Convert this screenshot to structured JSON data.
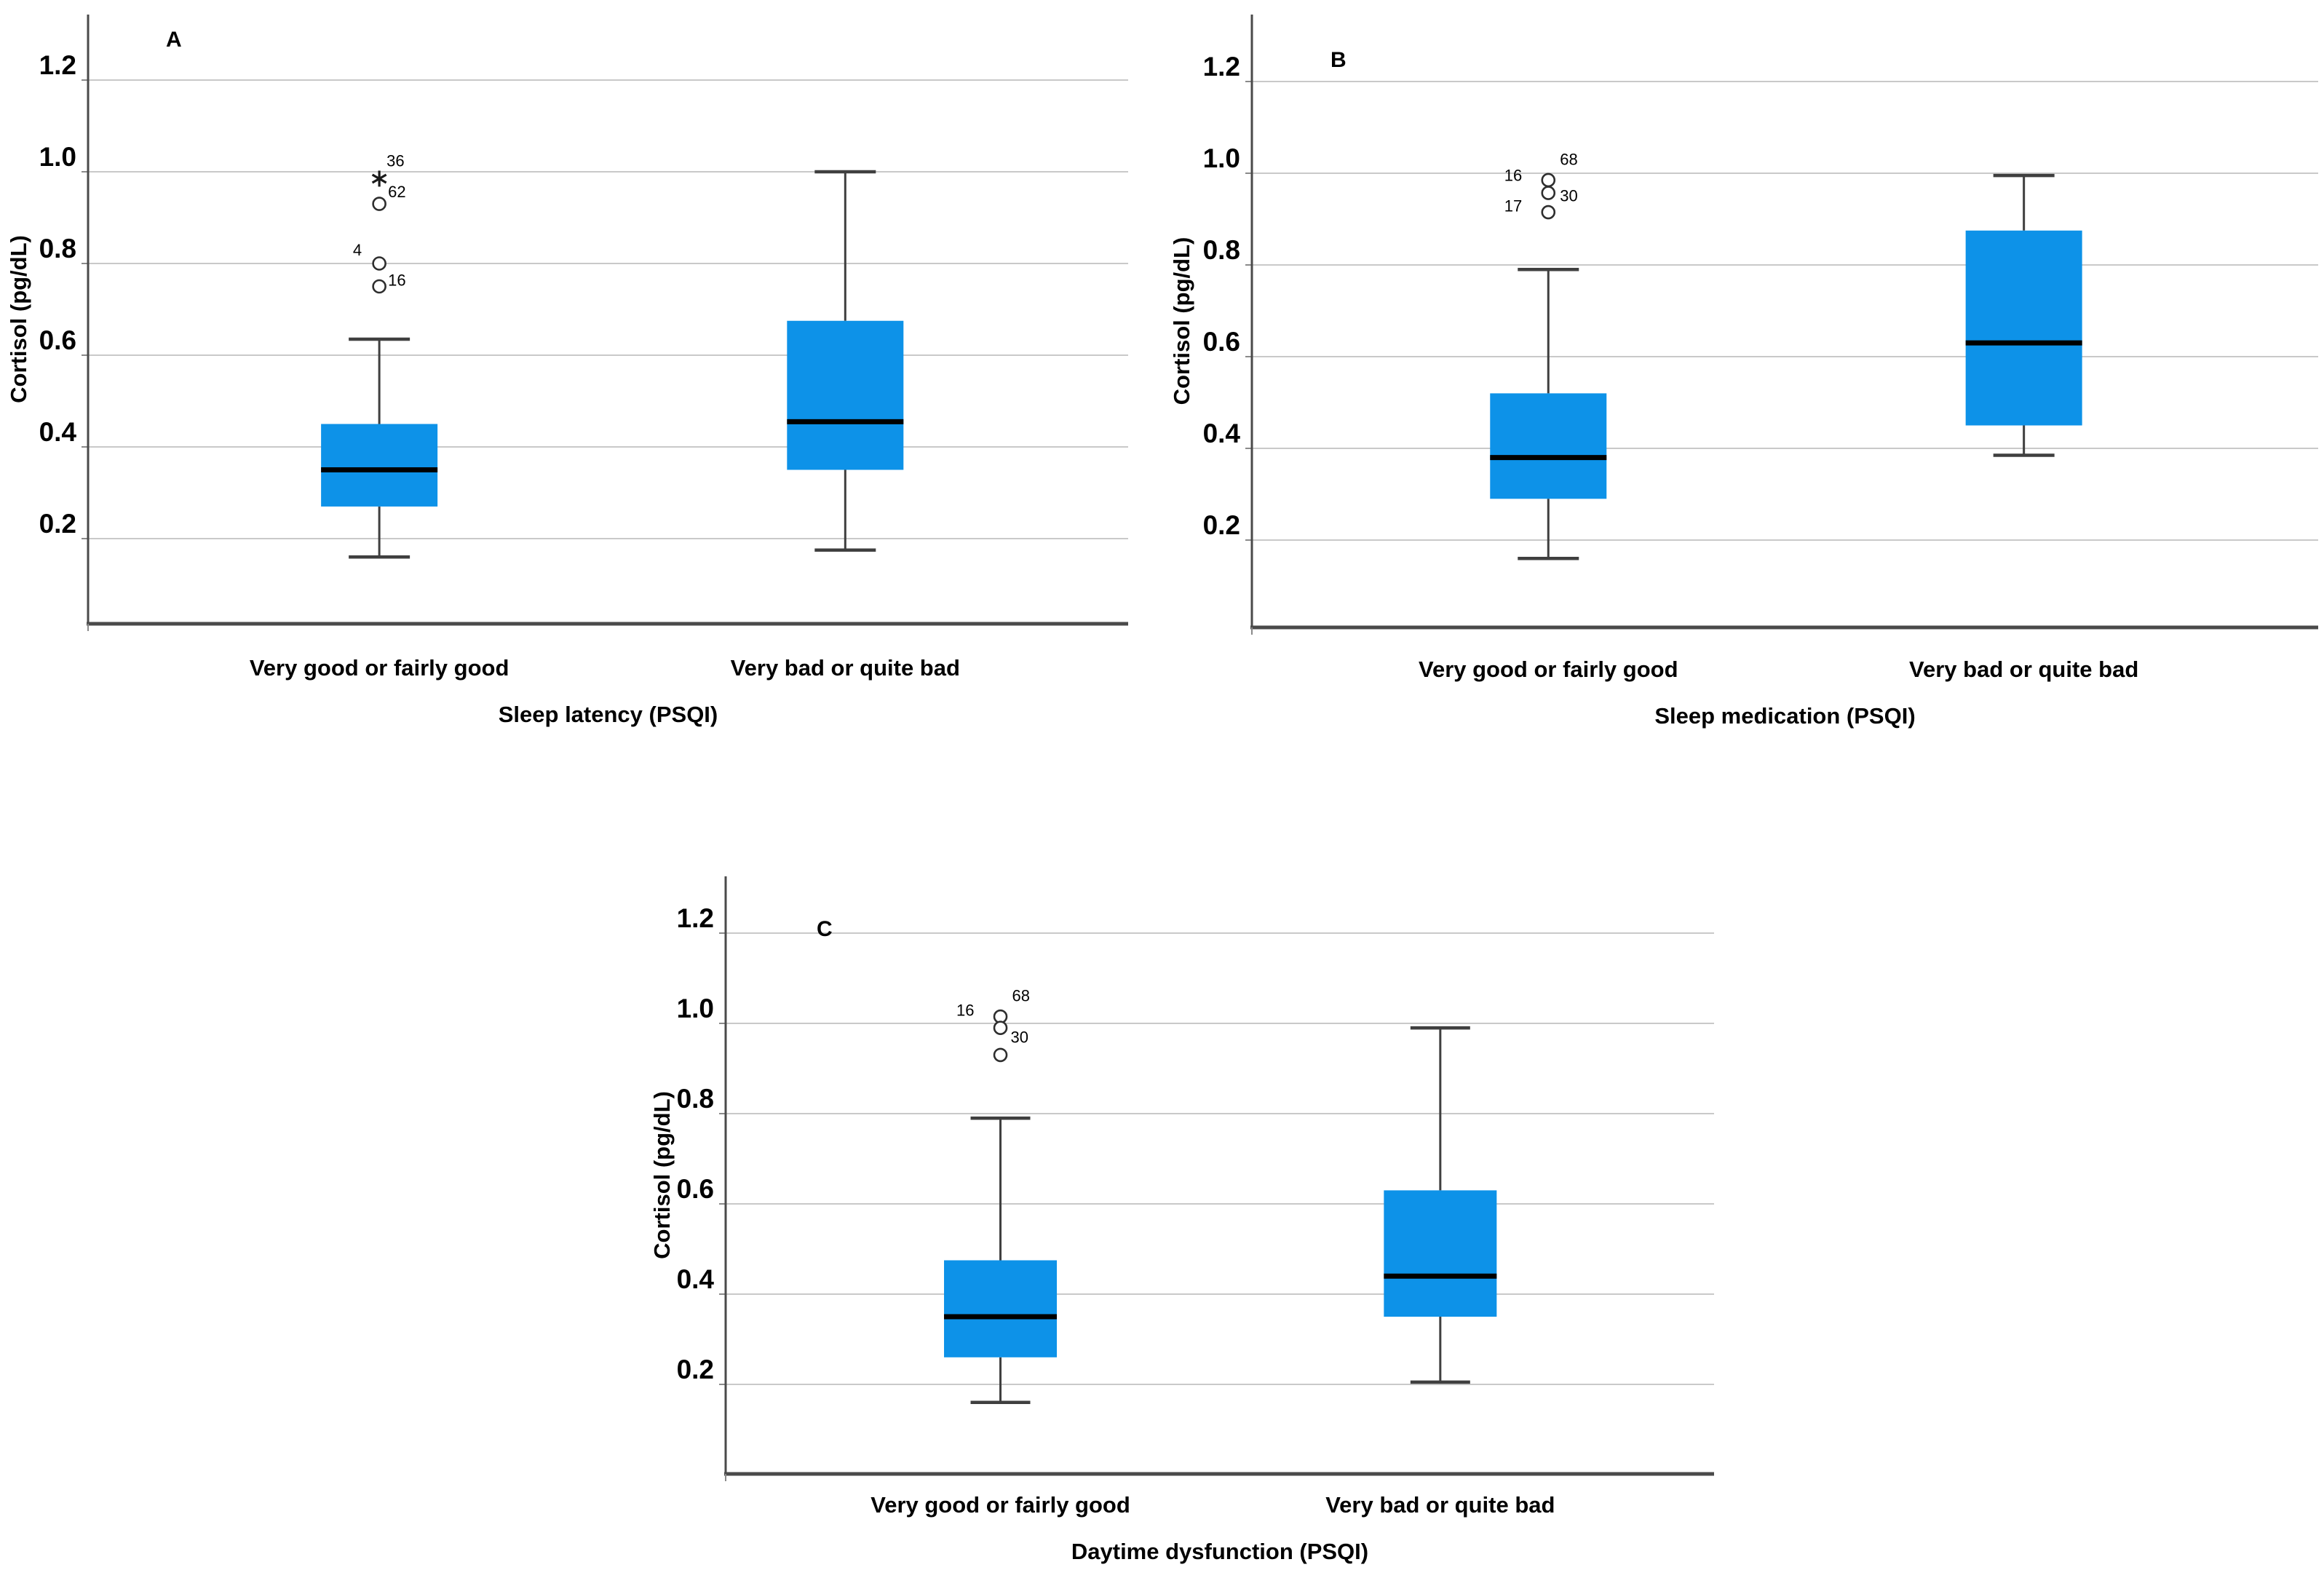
{
  "figure": {
    "background": "#ffffff",
    "description": "Three SPSS-style boxplot panels of cortisol by PSQI sleep categories"
  },
  "colors": {
    "box_fill": "#0d92e8",
    "median_line": "#000000",
    "whisker": "#3f3f3f",
    "cap": "#3f3f3f",
    "gridline": "#c9c9c9",
    "axis": "#4a4a4a",
    "tick": "#8a8a8a",
    "outlier_stroke": "#2e2e2e",
    "outlier_fill": "#ffffff",
    "text": "#000000"
  },
  "chart_data": [
    {
      "type": "boxplot",
      "panel_label": "A",
      "xlabel": "Sleep latency (PSQI)",
      "ylabel": "Cortisol (pg/dL)",
      "ylim": [
        0,
        1.35
      ],
      "yticks": [
        0.2,
        0.4,
        0.6,
        0.8,
        1.0,
        1.2
      ],
      "ytick_labels": [
        "0.2",
        "0.4",
        "0.6",
        "0.8",
        "1.0",
        "1.2"
      ],
      "grid": true,
      "legend": "none",
      "categories": [
        "Very good or fairly good",
        "Very bad or quite bad"
      ],
      "series": [
        {
          "category": "Very good or fairly good",
          "whisker_low": 0.16,
          "q1": 0.27,
          "median": 0.35,
          "q3": 0.45,
          "whisker_high": 0.635,
          "outliers": [
            {
              "value": 0.985,
              "marker": "star",
              "labels": [
                {
                  "text": "36",
                  "dx": 10,
                  "dy": -24
                }
              ]
            },
            {
              "value": 0.93,
              "marker": "circle",
              "labels": [
                {
                  "text": "62",
                  "dx": 12,
                  "dy": -16
                }
              ]
            },
            {
              "value": 0.8,
              "marker": "circle",
              "labels": [
                {
                  "text": "4",
                  "dx": -24,
                  "dy": -18
                }
              ]
            },
            {
              "value": 0.75,
              "marker": "circle",
              "labels": [
                {
                  "text": "16",
                  "dx": 12,
                  "dy": -8
                }
              ]
            }
          ]
        },
        {
          "category": "Very bad or quite bad",
          "whisker_low": 0.175,
          "q1": 0.35,
          "median": 0.455,
          "q3": 0.675,
          "whisker_high": 1.0,
          "outliers": []
        }
      ]
    },
    {
      "type": "boxplot",
      "panel_label": "B",
      "xlabel": "Sleep medication (PSQI)",
      "ylabel": "Cortisol (pg/dL)",
      "ylim": [
        0,
        1.35
      ],
      "yticks": [
        0.2,
        0.4,
        0.6,
        0.8,
        1.0,
        1.2
      ],
      "ytick_labels": [
        "0.2",
        "0.4",
        "0.6",
        "0.8",
        "1.0",
        "1.2"
      ],
      "grid": true,
      "legend": "none",
      "categories": [
        "Very good or fairly good",
        "Very bad or quite bad"
      ],
      "series": [
        {
          "category": "Very good or fairly good",
          "whisker_low": 0.16,
          "q1": 0.29,
          "median": 0.38,
          "q3": 0.52,
          "whisker_high": 0.79,
          "outliers": [
            {
              "value": 0.985,
              "marker": "circle",
              "labels": [
                {
                  "text": "16",
                  "dx": -36,
                  "dy": -6
                },
                {
                  "text": "68",
                  "dx": 16,
                  "dy": -28
                }
              ]
            },
            {
              "value": 0.957,
              "marker": "circle",
              "labels": []
            },
            {
              "value": 0.915,
              "marker": "circle",
              "labels": [
                {
                  "text": "17",
                  "dx": -36,
                  "dy": -8
                },
                {
                  "text": "30",
                  "dx": 16,
                  "dy": -22
                }
              ]
            }
          ]
        },
        {
          "category": "Very bad or quite bad",
          "whisker_low": 0.385,
          "q1": 0.45,
          "median": 0.63,
          "q3": 0.875,
          "whisker_high": 0.995,
          "outliers": []
        }
      ]
    },
    {
      "type": "boxplot",
      "panel_label": "C",
      "xlabel": "Daytime dysfunction (PSQI)",
      "ylabel": "Cortisol (pg/dL)",
      "ylim": [
        0,
        1.32
      ],
      "yticks": [
        0.2,
        0.4,
        0.6,
        0.8,
        1.0,
        1.2
      ],
      "ytick_labels": [
        "0.2",
        "0.4",
        "0.6",
        "0.8",
        "1.0",
        "1.2"
      ],
      "grid": true,
      "legend": "none",
      "categories": [
        "Very good or fairly good",
        "Very bad or quite bad"
      ],
      "series": [
        {
          "category": "Very good or fairly good",
          "whisker_low": 0.16,
          "q1": 0.26,
          "median": 0.35,
          "q3": 0.475,
          "whisker_high": 0.79,
          "outliers": [
            {
              "value": 1.015,
              "marker": "circle",
              "labels": [
                {
                  "text": "16",
                  "dx": -36,
                  "dy": -8
                },
                {
                  "text": "68",
                  "dx": 16,
                  "dy": -28
                }
              ]
            },
            {
              "value": 0.99,
              "marker": "circle",
              "labels": []
            },
            {
              "value": 0.93,
              "marker": "circle",
              "labels": [
                {
                  "text": "30",
                  "dx": 14,
                  "dy": -24
                }
              ]
            }
          ]
        },
        {
          "category": "Very bad or quite bad",
          "whisker_low": 0.205,
          "q1": 0.35,
          "median": 0.44,
          "q3": 0.63,
          "whisker_high": 0.99,
          "outliers": []
        }
      ]
    }
  ]
}
